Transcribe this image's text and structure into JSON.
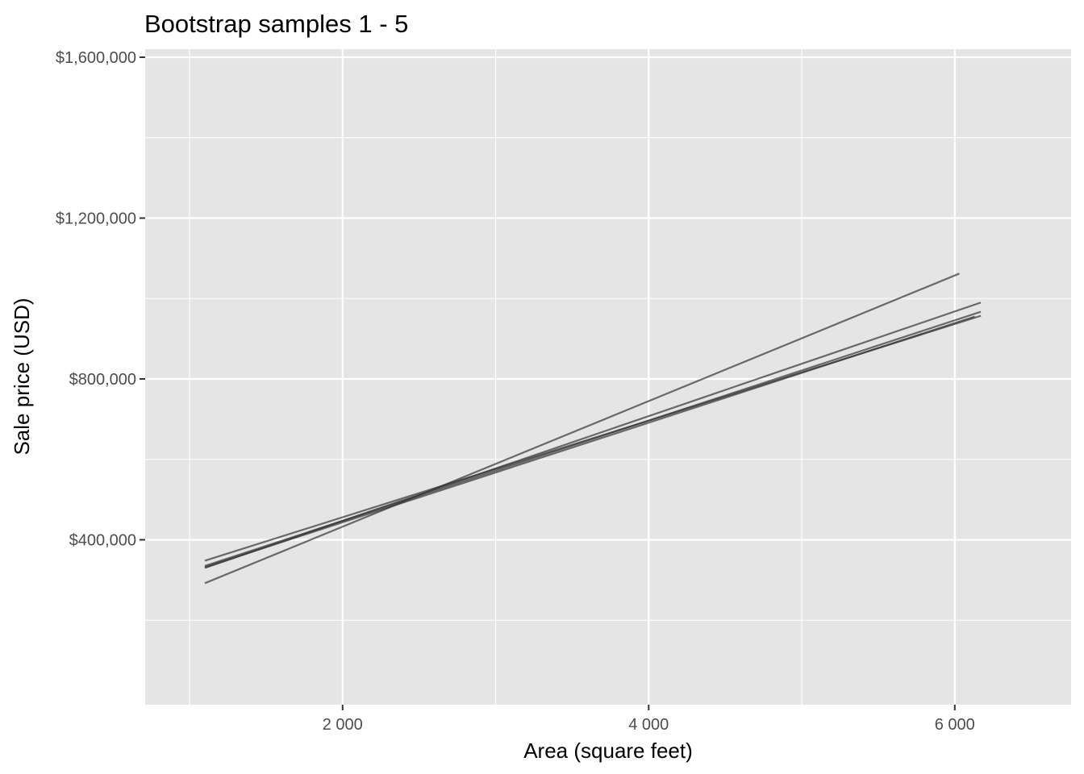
{
  "chart_data": {
    "type": "line",
    "title": "Bootstrap samples 1 - 5",
    "xlabel": "Area (square feet)",
    "ylabel": "Sale price (USD)",
    "xlim": [
      710,
      6760
    ],
    "ylim": [
      -10000,
      1620000
    ],
    "x_ticks": [
      {
        "value": 2000,
        "label": "2 000"
      },
      {
        "value": 4000,
        "label": "4 000"
      },
      {
        "value": 6000,
        "label": "6 000"
      }
    ],
    "x_minor_ticks": [
      1000,
      3000,
      5000
    ],
    "y_ticks": [
      {
        "value": 400000,
        "label": "$400,000"
      },
      {
        "value": 800000,
        "label": "$800,000"
      },
      {
        "value": 1200000,
        "label": "$1,200,000"
      },
      {
        "value": 1600000,
        "label": "$1,600,000"
      }
    ],
    "y_minor_ticks": [
      200000,
      600000,
      1000000,
      1400000
    ],
    "grid": true,
    "legend": "none",
    "line_color": "#333333",
    "line_opacity": 0.7,
    "series": [
      {
        "x": [
          1100,
          6030
        ],
        "y": [
          292000,
          1062000
        ]
      },
      {
        "x": [
          1100,
          6170
        ],
        "y": [
          330000,
          990000
        ]
      },
      {
        "x": [
          1100,
          6170
        ],
        "y": [
          335000,
          967000
        ]
      },
      {
        "x": [
          1100,
          6170
        ],
        "y": [
          348000,
          957000
        ]
      },
      {
        "x": [
          1100,
          6130
        ],
        "y": [
          332000,
          955000
        ]
      }
    ]
  }
}
